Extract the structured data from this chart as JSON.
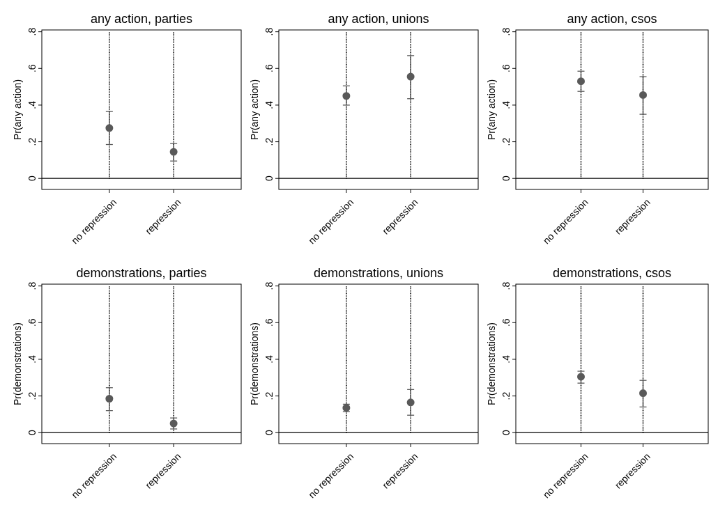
{
  "chart_data": [
    {
      "type": "scatter",
      "title": "any action, parties",
      "ylabel": "Pr(any action)",
      "categories": [
        "no repression",
        "repression"
      ],
      "values": [
        0.275,
        0.145
      ],
      "errors": [
        [
          0.185,
          0.365
        ],
        [
          0.095,
          0.19
        ]
      ],
      "color": "#595959",
      "marker": "circle",
      "ylim": [
        -0.06,
        0.81
      ],
      "yticks": [
        {
          "value": 0,
          "label": "0"
        },
        {
          "value": 0.2,
          "label": ".2"
        },
        {
          "value": 0.4,
          "label": ".4"
        },
        {
          "value": 0.6,
          "label": ".6"
        },
        {
          "value": 0.8,
          "label": ".8"
        }
      ],
      "grid": false,
      "ref_lines": [
        {
          "axis": "y",
          "value": 0,
          "color": "#000000",
          "line_style": "solid"
        },
        {
          "axis": "x",
          "value": "no repression",
          "color": "#000000",
          "line_style": "dotted"
        },
        {
          "axis": "x",
          "value": "repression",
          "color": "#000000",
          "line_style": "dotted"
        }
      ]
    },
    {
      "type": "scatter",
      "title": "any action, unions",
      "ylabel": "Pr(any action)",
      "categories": [
        "no repression",
        "repression"
      ],
      "values": [
        0.45,
        0.555
      ],
      "errors": [
        [
          0.4,
          0.505
        ],
        [
          0.435,
          0.67
        ]
      ],
      "color": "#595959",
      "marker": "circle",
      "ylim": [
        -0.06,
        0.81
      ],
      "yticks": [
        {
          "value": 0,
          "label": "0"
        },
        {
          "value": 0.2,
          "label": ".2"
        },
        {
          "value": 0.4,
          "label": ".4"
        },
        {
          "value": 0.6,
          "label": ".6"
        },
        {
          "value": 0.8,
          "label": ".8"
        }
      ],
      "grid": false,
      "ref_lines": [
        {
          "axis": "y",
          "value": 0,
          "color": "#000000",
          "line_style": "solid"
        },
        {
          "axis": "x",
          "value": "no repression",
          "color": "#000000",
          "line_style": "dotted"
        },
        {
          "axis": "x",
          "value": "repression",
          "color": "#000000",
          "line_style": "dotted"
        }
      ]
    },
    {
      "type": "scatter",
      "title": "any action, csos",
      "ylabel": "Pr(any action)",
      "categories": [
        "no repression",
        "repression"
      ],
      "values": [
        0.53,
        0.455
      ],
      "errors": [
        [
          0.475,
          0.585
        ],
        [
          0.35,
          0.555
        ]
      ],
      "color": "#595959",
      "marker": "circle",
      "ylim": [
        -0.06,
        0.81
      ],
      "yticks": [
        {
          "value": 0,
          "label": "0"
        },
        {
          "value": 0.2,
          "label": ".2"
        },
        {
          "value": 0.4,
          "label": ".4"
        },
        {
          "value": 0.6,
          "label": ".6"
        },
        {
          "value": 0.8,
          "label": ".8"
        }
      ],
      "grid": false,
      "ref_lines": [
        {
          "axis": "y",
          "value": 0,
          "color": "#000000",
          "line_style": "solid"
        },
        {
          "axis": "x",
          "value": "no repression",
          "color": "#000000",
          "line_style": "dotted"
        },
        {
          "axis": "x",
          "value": "repression",
          "color": "#000000",
          "line_style": "dotted"
        }
      ]
    },
    {
      "type": "scatter",
      "title": "demonstrations, parties",
      "ylabel": "Pr(demonstrations)",
      "categories": [
        "no repression",
        "repression"
      ],
      "values": [
        0.185,
        0.05
      ],
      "errors": [
        [
          0.12,
          0.245
        ],
        [
          0.02,
          0.08
        ]
      ],
      "color": "#595959",
      "marker": "circle",
      "ylim": [
        -0.06,
        0.81
      ],
      "yticks": [
        {
          "value": 0,
          "label": "0"
        },
        {
          "value": 0.2,
          "label": ".2"
        },
        {
          "value": 0.4,
          "label": ".4"
        },
        {
          "value": 0.6,
          "label": ".6"
        },
        {
          "value": 0.8,
          "label": ".8"
        }
      ],
      "grid": false,
      "ref_lines": [
        {
          "axis": "y",
          "value": 0,
          "color": "#000000",
          "line_style": "solid"
        },
        {
          "axis": "x",
          "value": "no repression",
          "color": "#000000",
          "line_style": "dotted"
        },
        {
          "axis": "x",
          "value": "repression",
          "color": "#000000",
          "line_style": "dotted"
        }
      ]
    },
    {
      "type": "scatter",
      "title": "demonstrations, unions",
      "ylabel": "Pr(demonstrations)",
      "categories": [
        "no repression",
        "repression"
      ],
      "values": [
        0.135,
        0.165
      ],
      "errors": [
        [
          0.115,
          0.155
        ],
        [
          0.095,
          0.235
        ]
      ],
      "color": "#595959",
      "marker": "circle",
      "ylim": [
        -0.06,
        0.81
      ],
      "yticks": [
        {
          "value": 0,
          "label": "0"
        },
        {
          "value": 0.2,
          "label": ".2"
        },
        {
          "value": 0.4,
          "label": ".4"
        },
        {
          "value": 0.6,
          "label": ".6"
        },
        {
          "value": 0.8,
          "label": ".8"
        }
      ],
      "grid": false,
      "ref_lines": [
        {
          "axis": "y",
          "value": 0,
          "color": "#000000",
          "line_style": "solid"
        },
        {
          "axis": "x",
          "value": "no repression",
          "color": "#000000",
          "line_style": "dotted"
        },
        {
          "axis": "x",
          "value": "repression",
          "color": "#000000",
          "line_style": "dotted"
        }
      ]
    },
    {
      "type": "scatter",
      "title": "demonstrations, csos",
      "ylabel": "Pr(demonstrations)",
      "categories": [
        "no repression",
        "repression"
      ],
      "values": [
        0.305,
        0.215
      ],
      "errors": [
        [
          0.27,
          0.335
        ],
        [
          0.14,
          0.285
        ]
      ],
      "color": "#595959",
      "marker": "circle",
      "ylim": [
        -0.06,
        0.81
      ],
      "yticks": [
        {
          "value": 0,
          "label": "0"
        },
        {
          "value": 0.2,
          "label": ".2"
        },
        {
          "value": 0.4,
          "label": ".4"
        },
        {
          "value": 0.6,
          "label": ".6"
        },
        {
          "value": 0.8,
          "label": ".8"
        }
      ],
      "grid": false,
      "ref_lines": [
        {
          "axis": "y",
          "value": 0,
          "color": "#000000",
          "line_style": "solid"
        },
        {
          "axis": "x",
          "value": "no repression",
          "color": "#000000",
          "line_style": "dotted"
        },
        {
          "axis": "x",
          "value": "repression",
          "color": "#000000",
          "line_style": "dotted"
        }
      ]
    }
  ]
}
